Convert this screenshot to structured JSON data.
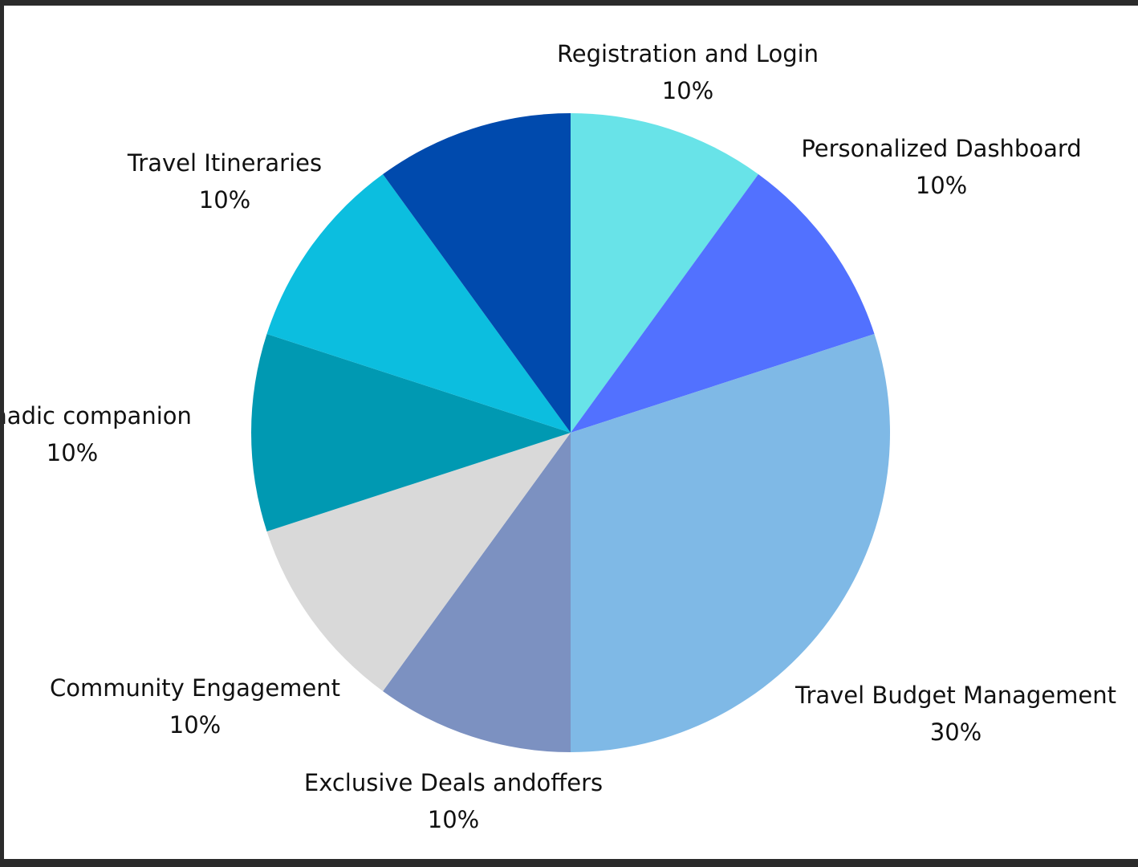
{
  "chart_data": {
    "type": "pie",
    "title": "",
    "start_angle_deg": 0,
    "direction": "clockwise",
    "slices": [
      {
        "label": "Registration and Login",
        "percent_label": "10%",
        "value": 10,
        "color": "#68E3E8"
      },
      {
        "label": "Personalized Dashboard",
        "percent_label": "10%",
        "value": 10,
        "color": "#5271FF"
      },
      {
        "label": "Travel Budget Management",
        "percent_label": "30%",
        "value": 30,
        "color": "#7FB9E6"
      },
      {
        "label": "Exclusive Deals andoffers",
        "percent_label": "10%",
        "value": 10,
        "color": "#7C91C1"
      },
      {
        "label": "Community Engagement",
        "percent_label": "10%",
        "value": 10,
        "color": "#D9D9D9"
      },
      {
        "label": "Nomadic companion",
        "percent_label": "10%",
        "value": 10,
        "color": "#0099B2"
      },
      {
        "label": "Travel Itineraries",
        "percent_label": "10%",
        "value": 10,
        "color": "#0CBEDF"
      },
      {
        "label": "",
        "percent_label": "",
        "value": 10,
        "color": "#004AAD"
      }
    ]
  }
}
